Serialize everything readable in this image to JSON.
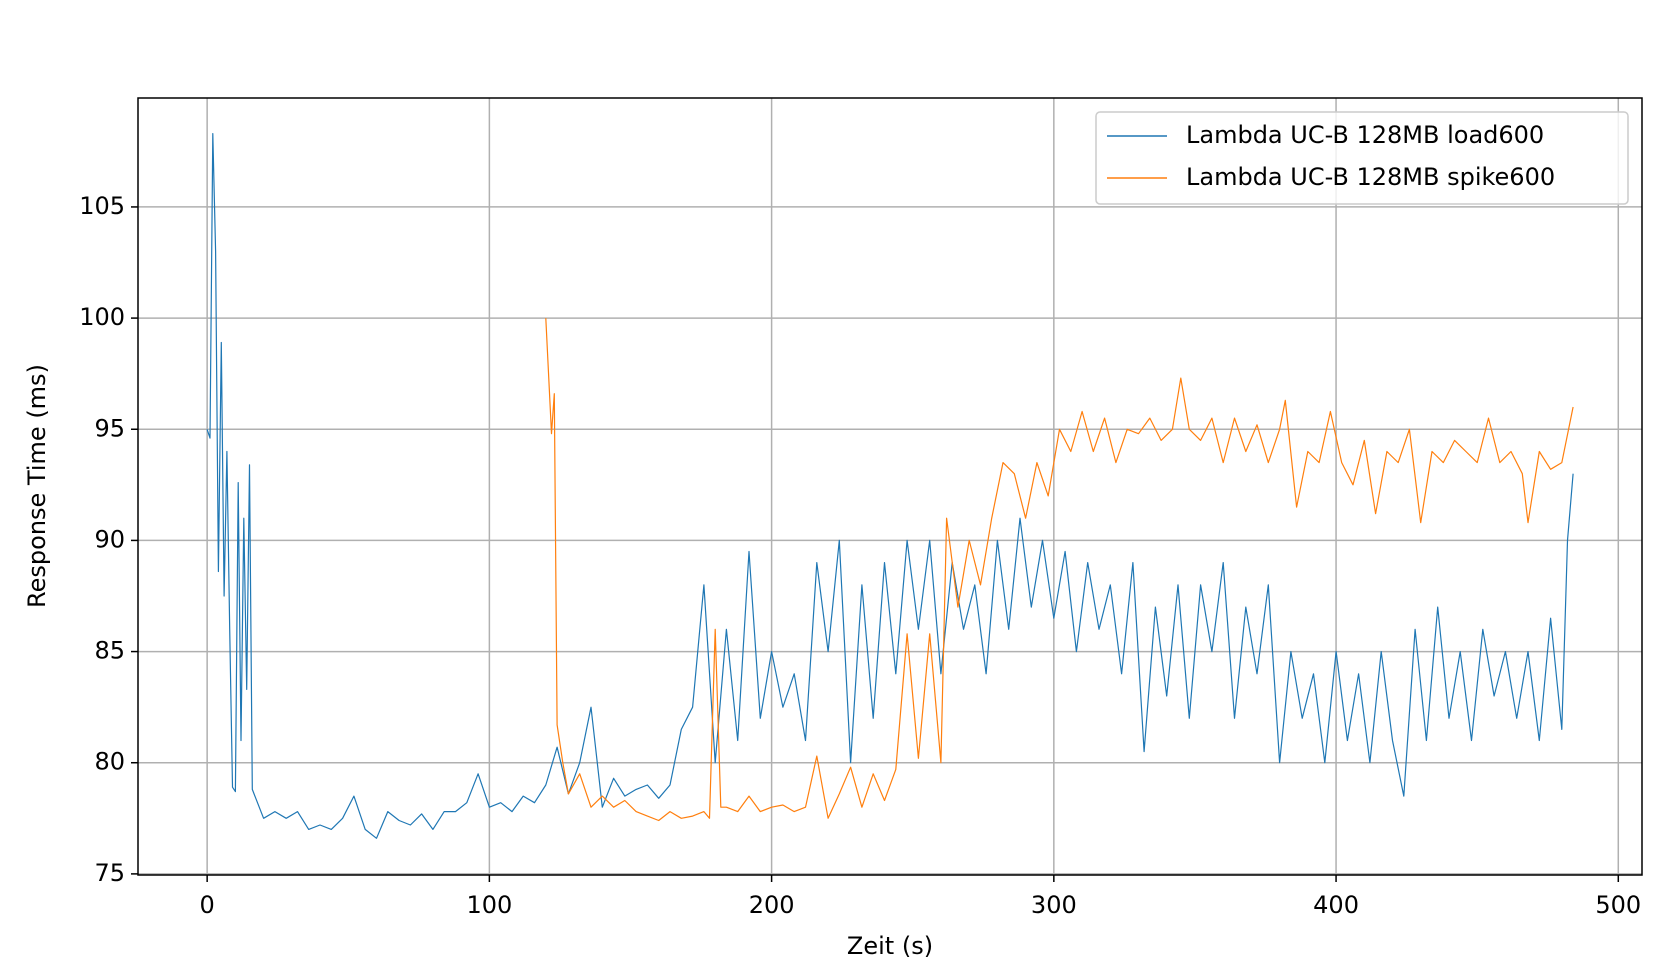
{
  "chart_data": {
    "type": "line",
    "xlabel": "Zeit (s)",
    "ylabel": "Response Time (ms)",
    "xlim": [
      -24.5,
      508.4
    ],
    "ylim": [
      74.95,
      109.9
    ],
    "xticks": [
      0,
      100,
      200,
      300,
      400,
      500
    ],
    "yticks": [
      75,
      80,
      85,
      90,
      95,
      100,
      105
    ],
    "grid": true,
    "legend": "upper right",
    "series": [
      {
        "name": "Lambda UC-B 128MB load600",
        "color": "#1f77b4",
        "x": [
          0,
          1,
          2,
          3,
          4,
          5,
          6,
          7,
          8,
          9,
          10,
          11,
          12,
          13,
          14,
          15,
          16,
          20,
          24,
          28,
          32,
          36,
          40,
          44,
          48,
          52,
          56,
          60,
          64,
          68,
          72,
          76,
          80,
          84,
          88,
          92,
          96,
          100,
          104,
          108,
          112,
          116,
          120,
          124,
          128,
          132,
          136,
          140,
          144,
          148,
          152,
          156,
          160,
          164,
          168,
          172,
          176,
          180,
          184,
          188,
          192,
          196,
          200,
          204,
          208,
          212,
          216,
          220,
          224,
          228,
          232,
          236,
          240,
          244,
          248,
          252,
          256,
          260,
          264,
          268,
          272,
          276,
          280,
          284,
          288,
          292,
          296,
          300,
          304,
          308,
          312,
          316,
          320,
          324,
          328,
          332,
          336,
          340,
          344,
          348,
          352,
          356,
          360,
          364,
          368,
          372,
          376,
          380,
          384,
          388,
          392,
          396,
          400,
          404,
          408,
          412,
          416,
          420,
          424,
          428,
          432,
          436,
          440,
          444,
          448,
          452,
          456,
          460,
          464,
          468,
          472,
          476,
          480,
          482,
          484
        ],
        "values": [
          95,
          94.6,
          108.3,
          103,
          88.6,
          98.9,
          87.5,
          94,
          86,
          78.9,
          78.7,
          92.6,
          81,
          91,
          83.3,
          93.4,
          78.8,
          77.5,
          77.8,
          77.5,
          77.8,
          77,
          77.2,
          77,
          77.5,
          78.5,
          77,
          76.6,
          77.8,
          77.4,
          77.2,
          77.7,
          77,
          77.8,
          77.8,
          78.2,
          79.5,
          78,
          78.2,
          77.8,
          78.5,
          78.2,
          79,
          80.7,
          78.6,
          80,
          82.5,
          78,
          79.3,
          78.5,
          78.8,
          79,
          78.4,
          79,
          81.5,
          82.5,
          88,
          80,
          86,
          81,
          89.5,
          82,
          85,
          82.5,
          84,
          81,
          89,
          85,
          90,
          80,
          88,
          82,
          89,
          84,
          90,
          86,
          90,
          84,
          89,
          86,
          88,
          84,
          90,
          86,
          91,
          87,
          90,
          86.5,
          89.5,
          85,
          89,
          86,
          88,
          84,
          89,
          80.5,
          87,
          83,
          88,
          82,
          88,
          85,
          89,
          82,
          87,
          84,
          88,
          80,
          85,
          82,
          84,
          80,
          85,
          81,
          84,
          80,
          85,
          81,
          78.5,
          86,
          81,
          87,
          82,
          85,
          81,
          86,
          83,
          85,
          82,
          85,
          81,
          86.5,
          81.5,
          90,
          93
        ]
      },
      {
        "name": "Lambda UC-B 128MB spike600",
        "color": "#ff7f0e",
        "x": [
          120,
          122,
          123,
          124,
          126,
          128,
          132,
          136,
          140,
          144,
          148,
          152,
          156,
          160,
          164,
          168,
          172,
          176,
          178,
          180,
          182,
          184,
          188,
          192,
          196,
          200,
          204,
          208,
          212,
          216,
          220,
          224,
          228,
          232,
          236,
          240,
          244,
          248,
          252,
          256,
          260,
          262,
          266,
          270,
          274,
          278,
          282,
          286,
          290,
          294,
          298,
          302,
          306,
          310,
          314,
          318,
          322,
          326,
          330,
          334,
          338,
          342,
          345,
          348,
          352,
          356,
          360,
          364,
          368,
          372,
          376,
          380,
          382,
          386,
          390,
          394,
          398,
          402,
          406,
          410,
          414,
          418,
          422,
          426,
          430,
          434,
          438,
          442,
          446,
          450,
          454,
          458,
          462,
          466,
          468,
          472,
          476,
          480,
          484
        ],
        "values": [
          100,
          94.8,
          96.6,
          81.7,
          80,
          78.6,
          79.5,
          78,
          78.5,
          78,
          78.3,
          77.8,
          77.6,
          77.4,
          77.8,
          77.5,
          77.6,
          77.8,
          77.5,
          86,
          78,
          78,
          77.8,
          78.5,
          77.8,
          78,
          78.1,
          77.8,
          78,
          80.3,
          77.5,
          78.6,
          79.8,
          78,
          79.5,
          78.3,
          79.7,
          85.8,
          80.2,
          85.8,
          80,
          91,
          87,
          90,
          88,
          91,
          93.5,
          93,
          91,
          93.5,
          92,
          95,
          94,
          95.8,
          94,
          95.5,
          93.5,
          95,
          94.8,
          95.5,
          94.5,
          95,
          97.3,
          95,
          94.5,
          95.5,
          93.5,
          95.5,
          94,
          95.2,
          93.5,
          95,
          96.3,
          91.5,
          94,
          93.5,
          95.8,
          93.5,
          92.5,
          94.5,
          91.2,
          94,
          93.5,
          95,
          90.8,
          94,
          93.5,
          94.5,
          94,
          93.5,
          95.5,
          93.5,
          94,
          93,
          90.8,
          94,
          93.2,
          93.5,
          96
        ]
      }
    ]
  }
}
